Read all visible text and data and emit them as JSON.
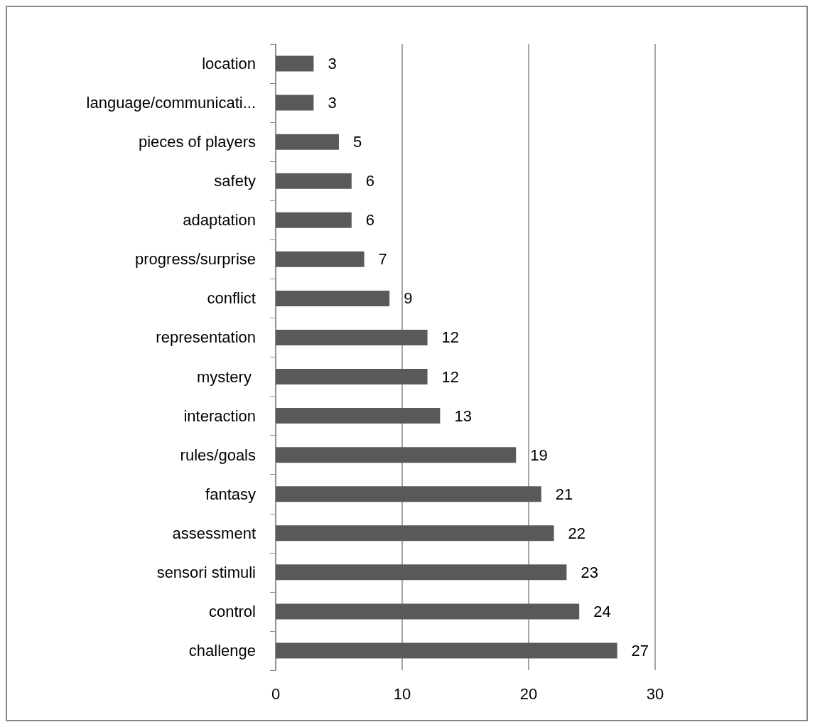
{
  "chart_data": {
    "type": "bar",
    "orientation": "horizontal",
    "categories": [
      "location",
      "language/communicati...",
      "pieces of players",
      "safety",
      "adaptation",
      "progress/surprise",
      "conflict",
      "representation",
      "mystery ",
      "interaction",
      "rules/goals",
      "fantasy",
      "assessment",
      "sensori stimuli",
      "control",
      "challenge"
    ],
    "values": [
      3,
      3,
      5,
      6,
      6,
      7,
      9,
      12,
      12,
      13,
      19,
      21,
      22,
      23,
      24,
      27
    ],
    "color": "#595959",
    "xlim": [
      0,
      30
    ],
    "xticks": [
      0,
      10,
      20,
      30
    ],
    "grid": "x",
    "data_labels": true
  }
}
